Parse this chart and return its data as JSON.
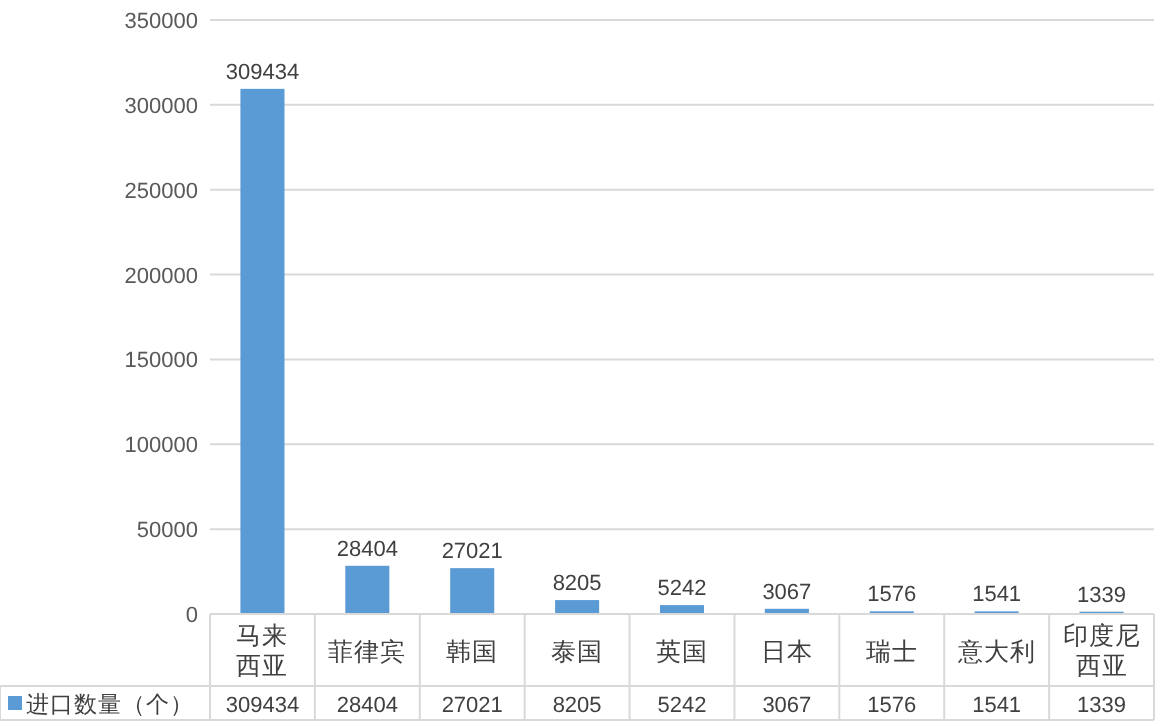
{
  "chart_data": {
    "type": "bar",
    "categories": [
      "马来西亚",
      "菲律宾",
      "韩国",
      "泰国",
      "英国",
      "日本",
      "瑞士",
      "意大利",
      "印度尼西亚"
    ],
    "series": [
      {
        "name": "进口数量（个）",
        "color": "#5b9bd5",
        "values": [
          309434,
          28404,
          27021,
          8205,
          5242,
          3067,
          1576,
          1541,
          1339
        ],
        "value_labels": [
          "309434",
          "28404",
          "27021",
          "8205",
          "5242",
          "3067",
          "1576",
          "1541",
          "1339"
        ]
      }
    ],
    "ylim": [
      0,
      350000
    ],
    "yticks": [
      0,
      50000,
      100000,
      150000,
      200000,
      250000,
      300000,
      350000
    ],
    "grid": "y",
    "data_labels": true,
    "legend": "bottom"
  }
}
